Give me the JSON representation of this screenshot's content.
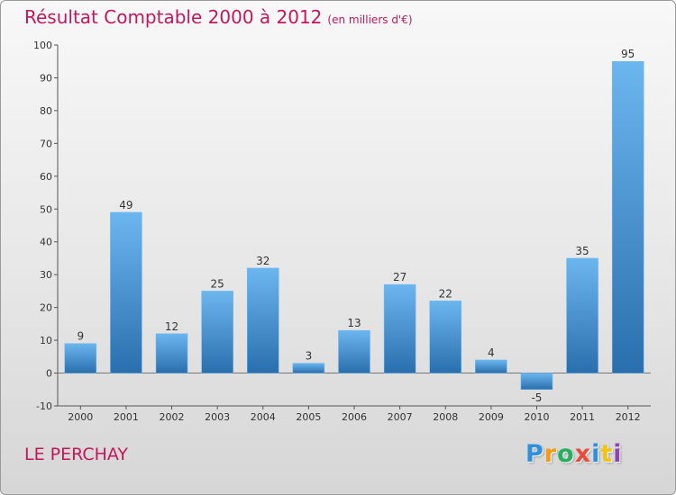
{
  "chart_data": {
    "type": "bar",
    "title": "Résultat Comptable 2000 à 2012",
    "subtitle": "(en milliers d'€)",
    "categories": [
      "2000",
      "2001",
      "2002",
      "2003",
      "2004",
      "2005",
      "2006",
      "2007",
      "2008",
      "2009",
      "2010",
      "2011",
      "2012"
    ],
    "values": [
      9,
      49,
      12,
      25,
      32,
      3,
      13,
      27,
      22,
      4,
      -5,
      35,
      95
    ],
    "ylim": [
      -10,
      100
    ],
    "yticks": [
      -10,
      0,
      10,
      20,
      30,
      40,
      50,
      60,
      70,
      80,
      90,
      100
    ],
    "xlabel": "",
    "ylabel": "",
    "bar_color": "#3c8fd6",
    "bar_color_light": "#6cb6f0",
    "bar_color_dark": "#2a6fad"
  },
  "place_name": "LE PERCHAY",
  "logo": {
    "letters": [
      "P",
      "r",
      "o",
      "x",
      "i",
      "t",
      "i"
    ]
  },
  "colors": {
    "title": "#c2185b"
  }
}
